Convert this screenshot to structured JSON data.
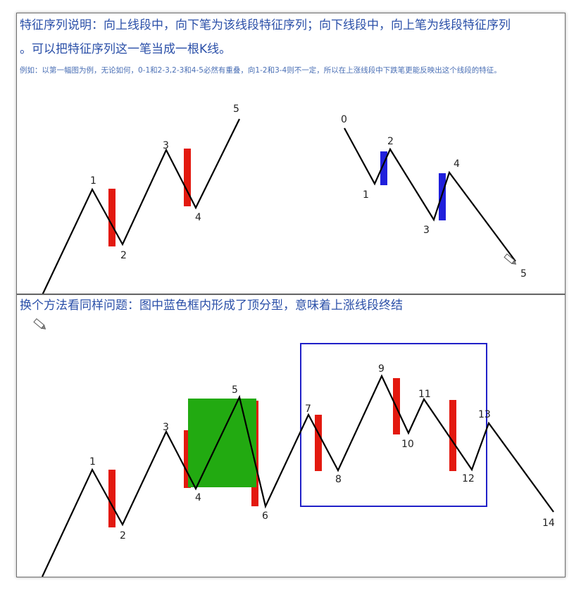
{
  "top": {
    "title_line1": "特征序列说明：向上线段中，向下笔为该线段特征序列；向下线段中，向上笔为线段特征序列",
    "title_line2": "。可以把特征序列这一笔当成一根K线。",
    "subtitle": "例如：以第一幅图为例，无论如何，0-1和2-3,2-3和4-5必然有重叠，向1-2和3-4则不一定，所以在上涨线段中下跌笔更能反映出这个线段的特征。",
    "left_labels": [
      "1",
      "2",
      "3",
      "4",
      "5"
    ],
    "right_labels": [
      "0",
      "1",
      "2",
      "3",
      "4",
      "5"
    ]
  },
  "bottom": {
    "title": "换个方法看同样问题：图中蓝色框内形成了顶分型，意味着上涨线段终结",
    "labels": [
      "1",
      "2",
      "3",
      "4",
      "5",
      "6",
      "7",
      "8",
      "9",
      "10",
      "11",
      "12",
      "13",
      "14"
    ]
  },
  "colors": {
    "title": "#2a4fa8",
    "red_bar": "#e3190f",
    "blue_bar": "#1f1fdc",
    "green_box": "#22aa11",
    "frame": "#2121c8"
  },
  "icons": [
    "pencil-icon"
  ]
}
